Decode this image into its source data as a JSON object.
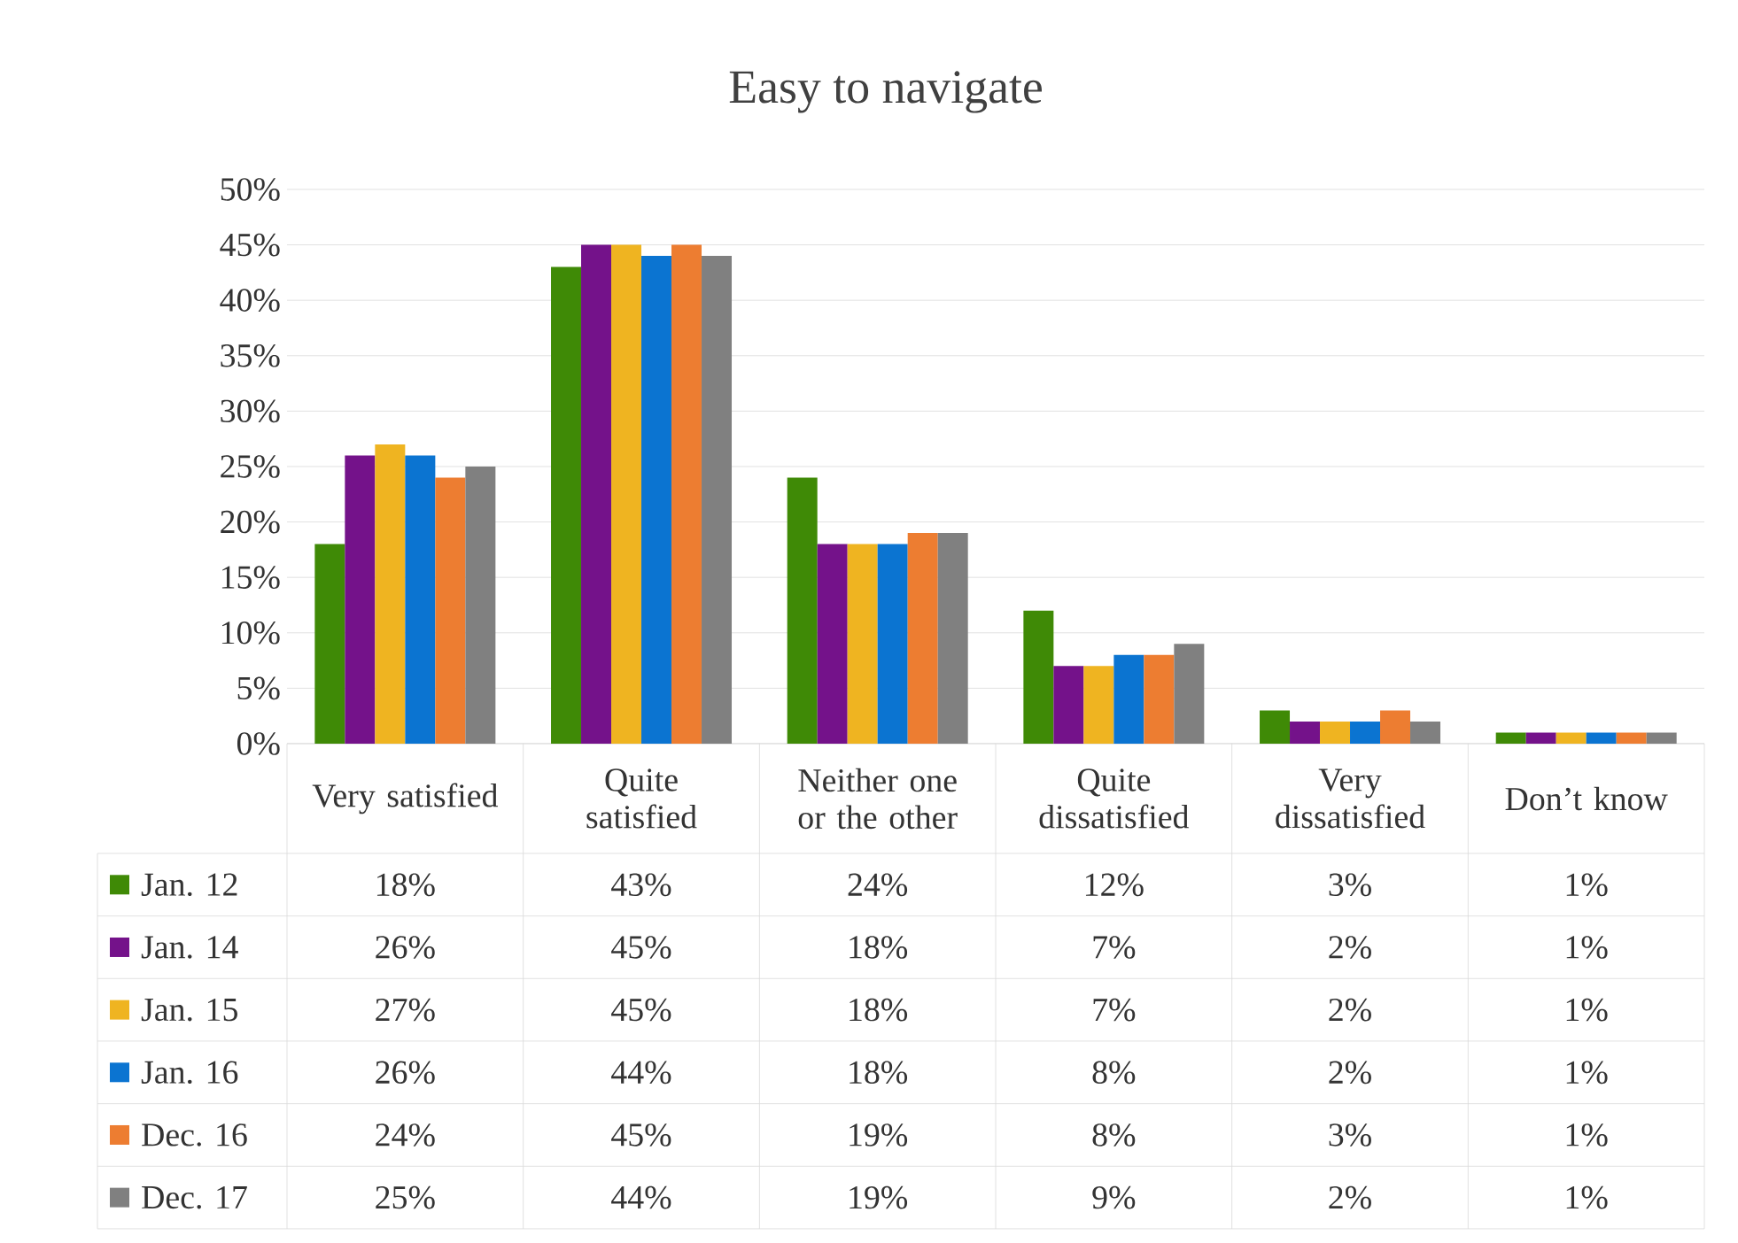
{
  "chart_data": {
    "type": "bar",
    "title": "Easy to navigate",
    "categories": [
      "Very satisfied",
      "Quite satisfied",
      "Neither one or the other",
      "Quite dissatisfied",
      "Very dissatisfied",
      "Don’t know"
    ],
    "series": [
      {
        "name": "Jan. 12",
        "color": "#3f8a06",
        "values": [
          18,
          43,
          24,
          12,
          3,
          1
        ],
        "value_labels": [
          "18%",
          "43%",
          "24%",
          "12%",
          "3%",
          "1%"
        ]
      },
      {
        "name": "Jan. 14",
        "color": "#74128a",
        "values": [
          26,
          45,
          18,
          7,
          2,
          1
        ],
        "value_labels": [
          "26%",
          "45%",
          "18%",
          "7%",
          "2%",
          "1%"
        ]
      },
      {
        "name": "Jan. 15",
        "color": "#efb421",
        "values": [
          27,
          45,
          18,
          7,
          2,
          1
        ],
        "value_labels": [
          "27%",
          "45%",
          "18%",
          "7%",
          "2%",
          "1%"
        ]
      },
      {
        "name": "Jan. 16",
        "color": "#0b74d1",
        "values": [
          26,
          44,
          18,
          8,
          2,
          1
        ],
        "value_labels": [
          "26%",
          "44%",
          "18%",
          "8%",
          "2%",
          "1%"
        ]
      },
      {
        "name": "Dec. 16",
        "color": "#ed7d31",
        "values": [
          24,
          45,
          19,
          8,
          3,
          1
        ],
        "value_labels": [
          "24%",
          "45%",
          "19%",
          "8%",
          "3%",
          "1%"
        ]
      },
      {
        "name": "Dec. 17",
        "color": "#808080",
        "values": [
          25,
          44,
          19,
          9,
          2,
          1
        ],
        "value_labels": [
          "25%",
          "44%",
          "19%",
          "9%",
          "2%",
          "1%"
        ]
      }
    ],
    "ylim": [
      0,
      50
    ],
    "yticks": [
      {
        "value": 0,
        "label": "0%"
      },
      {
        "value": 5,
        "label": "5%"
      },
      {
        "value": 10,
        "label": "10%"
      },
      {
        "value": 15,
        "label": "15%"
      },
      {
        "value": 20,
        "label": "20%"
      },
      {
        "value": 25,
        "label": "25%"
      },
      {
        "value": 30,
        "label": "30%"
      },
      {
        "value": 35,
        "label": "35%"
      },
      {
        "value": 40,
        "label": "40%"
      },
      {
        "value": 45,
        "label": "45%"
      },
      {
        "value": 50,
        "label": "50%"
      }
    ],
    "grid": "y",
    "legend": "bottom"
  }
}
